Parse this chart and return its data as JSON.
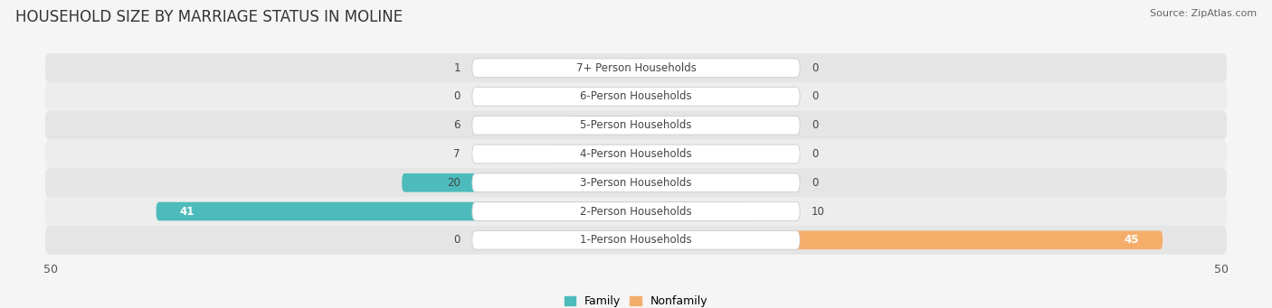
{
  "title": "HOUSEHOLD SIZE BY MARRIAGE STATUS IN MOLINE",
  "source": "Source: ZipAtlas.com",
  "categories": [
    "7+ Person Households",
    "6-Person Households",
    "5-Person Households",
    "4-Person Households",
    "3-Person Households",
    "2-Person Households",
    "1-Person Households"
  ],
  "family_values": [
    1,
    0,
    6,
    7,
    20,
    41,
    0
  ],
  "nonfamily_values": [
    0,
    0,
    0,
    0,
    0,
    10,
    45
  ],
  "family_color": "#52BAБА",
  "nonfamily_color": "#F5AF6F",
  "family_color_hex": "#52BABA",
  "nonfamily_color_hex": "#F5AF6F",
  "xlim": 50,
  "background_color": "#f5f5f5",
  "row_color_odd": "#e8e8e8",
  "row_color_even": "#efefef",
  "title_fontsize": 12,
  "label_fontsize": 8.5,
  "axis_fontsize": 9,
  "source_fontsize": 8
}
